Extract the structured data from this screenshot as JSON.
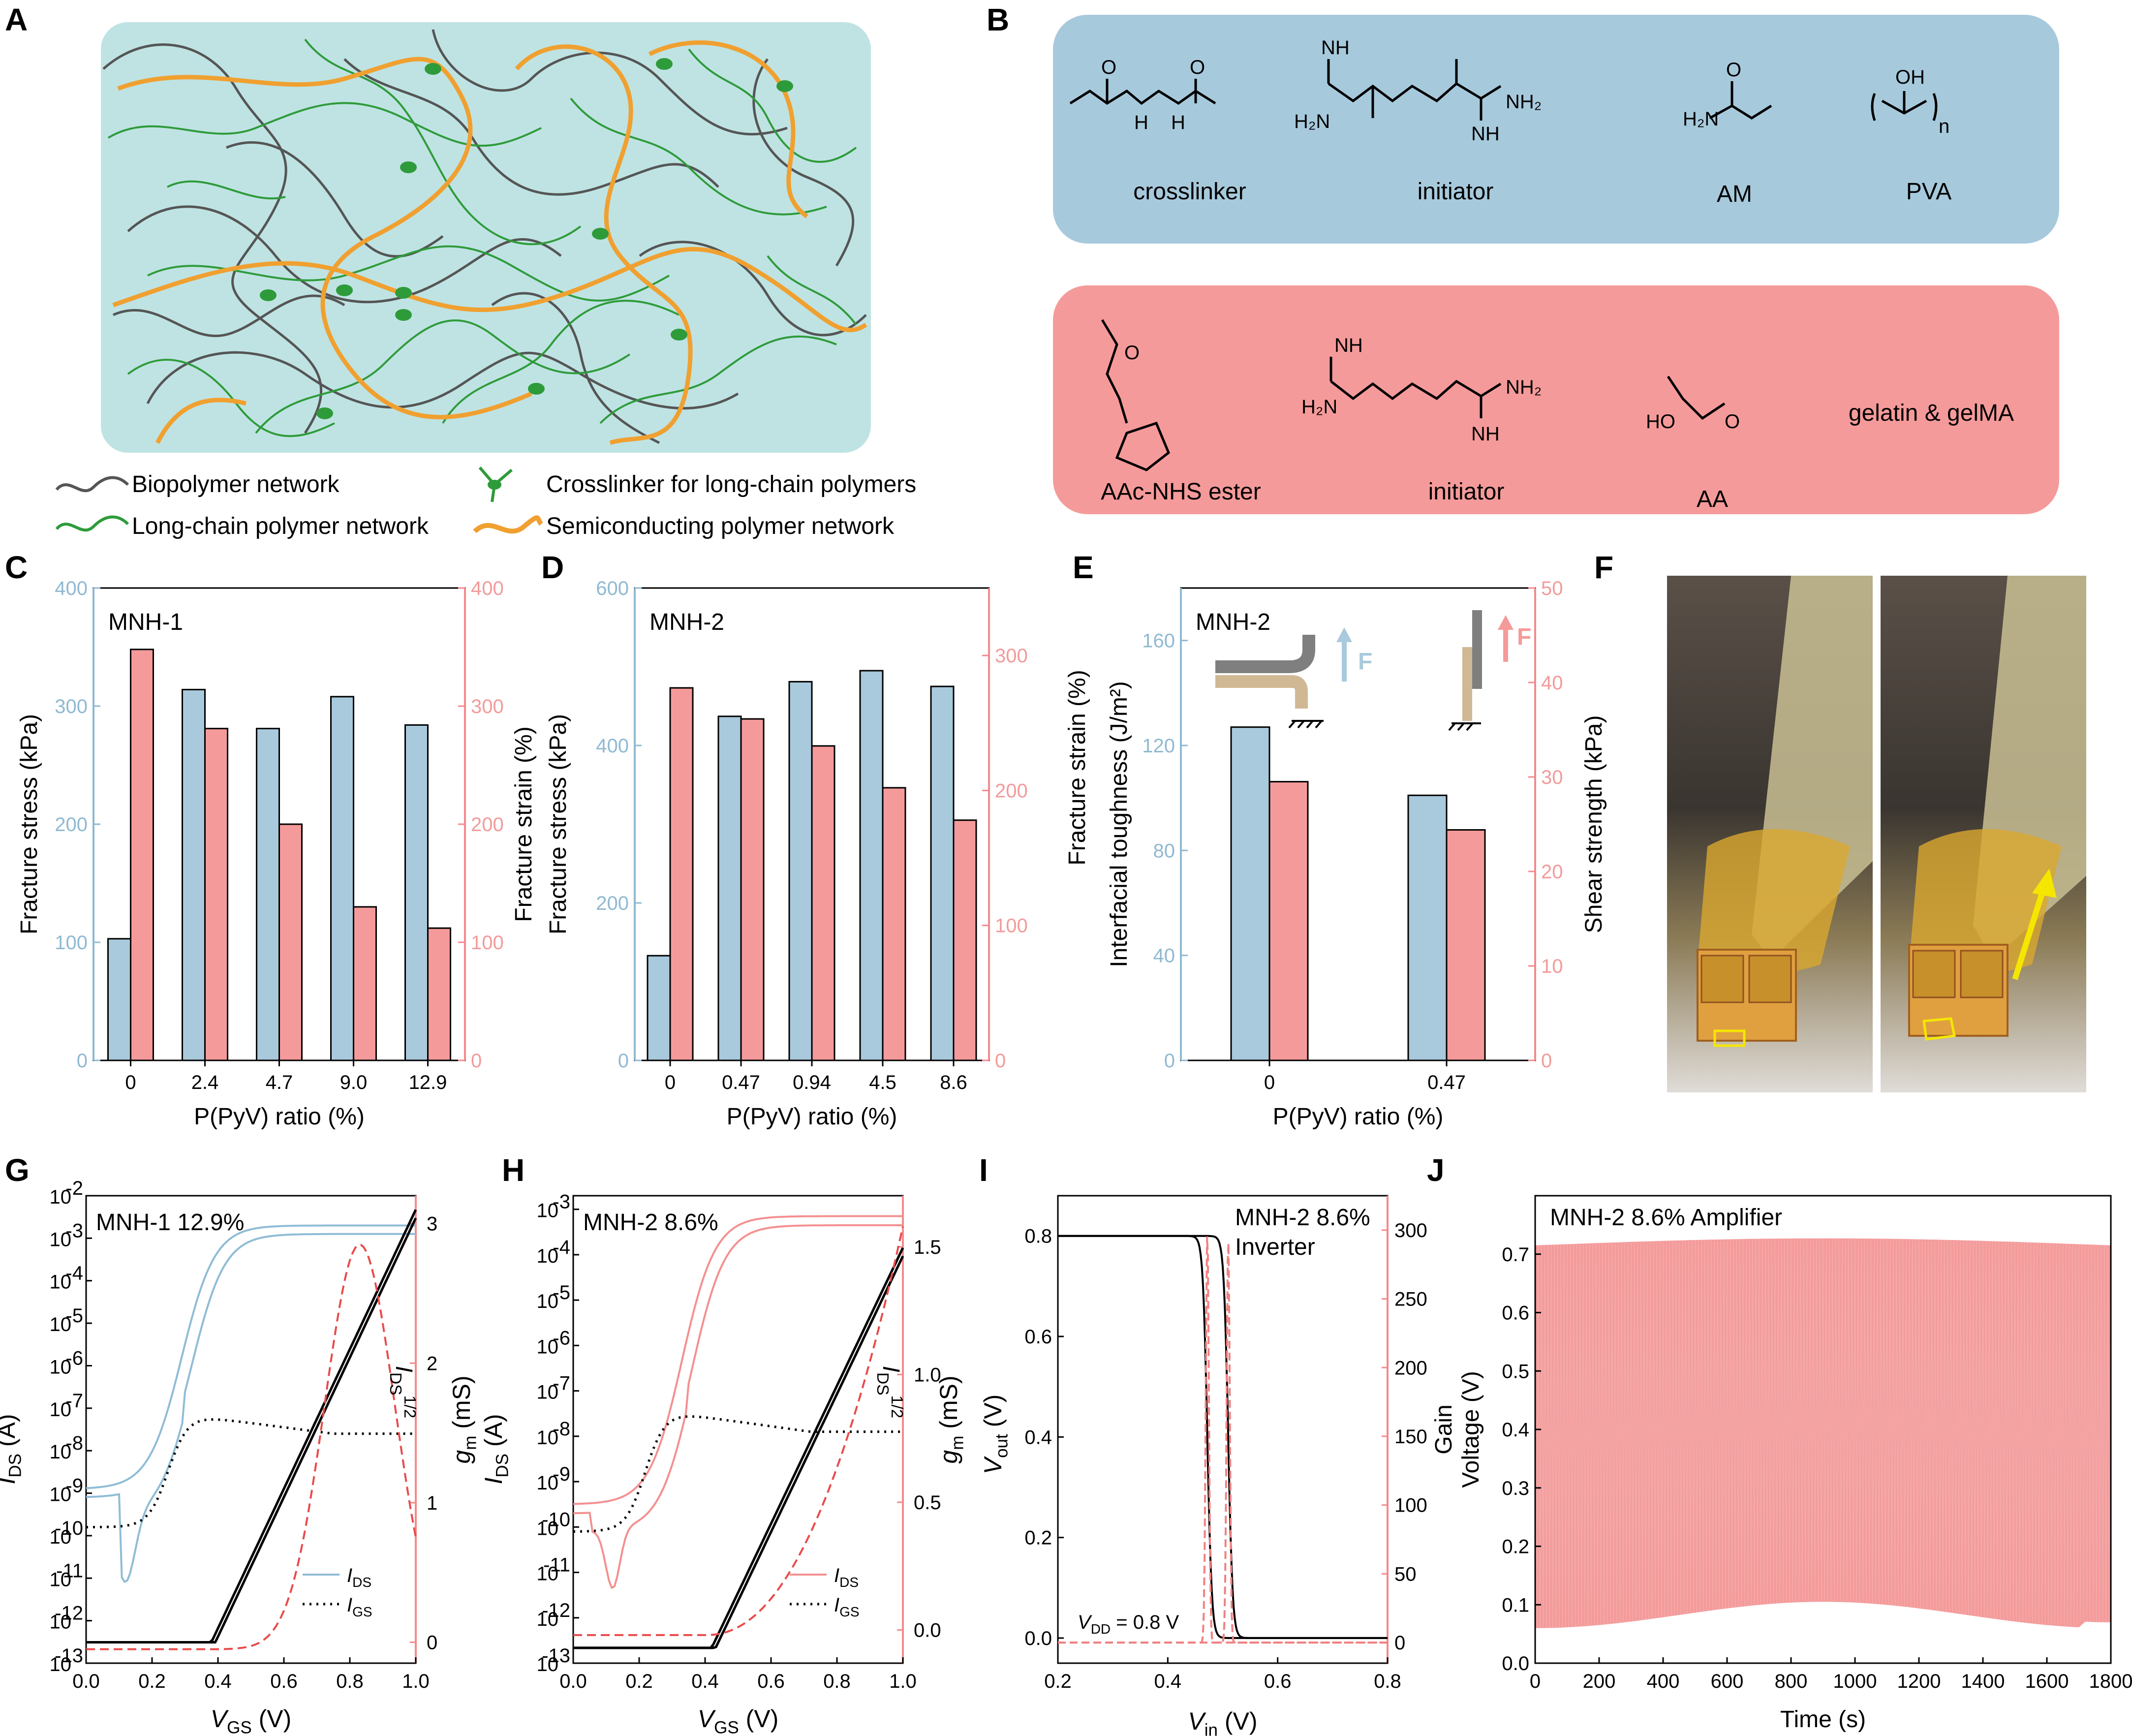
{
  "colors": {
    "blue_bar": "#a9c9dc",
    "red_bar": "#f59a9a",
    "blue_axis": "#8fb9d2",
    "red_axis": "#f4898c",
    "network_bg": "#bfe3e3",
    "gray_net": "#555555",
    "green_net": "#2e9b3a",
    "orange_net": "#f0a030",
    "box_blue": "#a7c9dc",
    "box_red": "#f59a9a"
  },
  "panelA": {
    "label": "A",
    "legend": [
      "Biopolymer network",
      "Crosslinker for long-chain polymers",
      "Long-chain polymer network",
      "Semiconducting polymer network"
    ]
  },
  "panelB": {
    "label": "B",
    "top": {
      "items": [
        "crosslinker",
        "initiator",
        "AM",
        "PVA"
      ]
    },
    "bottom": {
      "items": [
        "AAc-NHS ester",
        "initiator",
        "AA",
        "gelatin & gelMA"
      ]
    },
    "atoms": {
      "O": "O",
      "H": "H",
      "NH": "NH",
      "H2N": "H₂N",
      "NH2": "NH₂",
      "N": "N",
      "OH": "OH",
      "HO": "HO",
      "n": "n"
    }
  },
  "panelC": {
    "label": "C",
    "name": "MNH-1",
    "ylabel_left": "Fracture stress (kPa)",
    "ylabel_right": "Fracture strain (%)",
    "xlabel": "P(PyV) ratio (%)",
    "yticks_left": [
      "0",
      "100",
      "200",
      "300",
      "400"
    ],
    "yticks_right": [
      "0",
      "100",
      "200",
      "300",
      "400"
    ]
  },
  "panelD": {
    "label": "D",
    "name": "MNH-2",
    "ylabel_left": "Fracture stress (kPa)",
    "ylabel_right": "Fracture strain (%)",
    "xlabel": "P(PyV) ratio (%)",
    "yticks_left": [
      "0",
      "200",
      "400",
      "600"
    ],
    "yticks_right": [
      "0",
      "100",
      "200",
      "300"
    ]
  },
  "panelE": {
    "label": "E",
    "name": "MNH-2",
    "ylabel_left": "Interfacial toughness (J/m²)",
    "ylabel_right": "Shear strength (kPa)",
    "ylabel_right2": "Fracture strain (%)",
    "xlabel": "P(PyV) ratio (%)",
    "force": "F",
    "yticks_left": [
      "0",
      "40",
      "80",
      "120",
      "160"
    ],
    "yticks_right": [
      "0",
      "10",
      "20",
      "30",
      "40",
      "50"
    ]
  },
  "panelF": {
    "label": "F"
  },
  "panelG": {
    "label": "G",
    "name": "MNH-1 12.9%",
    "ylabel_left": "I",
    "ylabel_left_sub": "DS",
    "ylabel_left_unit": " (A)",
    "ylabel_right": "g",
    "ylabel_right_sub": "m",
    "ylabel_right_unit": " (mS)",
    "xlabel": "V",
    "xlabel_sub": "GS",
    "xlabel_unit": " (V)",
    "sqrt_label": "I",
    "sqrt_sub": "DS",
    "sqrt_sup": "1/2",
    "legend": [
      {
        "sym": "I",
        "sub": "DS"
      },
      {
        "sym": "I",
        "sub": "GS"
      }
    ],
    "yticks_left": [
      "10",
      "10",
      "10",
      "10",
      "10",
      "10",
      "10",
      "10",
      "10",
      "10",
      "10",
      "10"
    ],
    "yexp_left": [
      "-13",
      "-12",
      "-11",
      "-10",
      "-9",
      "-8",
      "-7",
      "-6",
      "-5",
      "-4",
      "-3",
      "-2"
    ],
    "yticks_right": [
      "0",
      "1",
      "2",
      "3"
    ],
    "xticks": [
      "0.0",
      "0.2",
      "0.4",
      "0.6",
      "0.8",
      "1.0"
    ]
  },
  "panelH": {
    "label": "H",
    "name": "MNH-2 8.6%",
    "ylabel_left": "I",
    "ylabel_left_sub": "DS",
    "ylabel_left_unit": " (A)",
    "ylabel_right": "g",
    "ylabel_right_sub": "m",
    "ylabel_right_unit": " (mS)",
    "xlabel": "V",
    "xlabel_sub": "GS",
    "xlabel_unit": " (V)",
    "sqrt_label": "I",
    "sqrt_sub": "DS",
    "sqrt_sup": "1/2",
    "legend": [
      {
        "sym": "I",
        "sub": "DS"
      },
      {
        "sym": "I",
        "sub": "GS"
      }
    ],
    "yticks_left": [
      "10",
      "10",
      "10",
      "10",
      "10",
      "10",
      "10",
      "10",
      "10",
      "10",
      "10"
    ],
    "yexp_left": [
      "-13",
      "-12",
      "-11",
      "-10",
      "-9",
      "-8",
      "-7",
      "-6",
      "-5",
      "-4",
      "-3"
    ],
    "yticks_right": [
      "0.0",
      "0.5",
      "1.0",
      "1.5"
    ],
    "xticks": [
      "0.0",
      "0.2",
      "0.4",
      "0.6",
      "0.8",
      "1.0"
    ]
  },
  "panelI": {
    "label": "I",
    "name": "MNH-2 8.6%",
    "subname": "Inverter",
    "ylabel_left": "V",
    "ylabel_left_sub": "out",
    "ylabel_left_unit": " (V)",
    "ylabel_right": "Gain",
    "xlabel": "V",
    "xlabel_sub": "in",
    "xlabel_unit": " (V)",
    "vdd": "V",
    "vdd_sub": "DD",
    "vdd_val": " = 0.8 V",
    "yticks_left": [
      "0.0",
      "0.2",
      "0.4",
      "0.6",
      "0.8"
    ],
    "yticks_right": [
      "0",
      "50",
      "100",
      "150",
      "200",
      "250",
      "300"
    ],
    "xticks": [
      "0.2",
      "0.4",
      "0.6",
      "0.8"
    ]
  },
  "panelJ": {
    "label": "J",
    "name": "MNH-2 8.6%",
    "subname": "Amplifier",
    "ylabel": "Voltage (V)",
    "xlabel": "Time (s)",
    "yticks": [
      "0.0",
      "0.1",
      "0.2",
      "0.3",
      "0.4",
      "0.5",
      "0.6",
      "0.7"
    ],
    "xticks": [
      "0",
      "200",
      "400",
      "600",
      "800",
      "1000",
      "1200",
      "1400",
      "1600",
      "1800"
    ]
  },
  "chart_data": [
    {
      "panel": "C",
      "type": "bar",
      "categories": [
        "0",
        "2.4",
        "4.7",
        "9.0",
        "12.9"
      ],
      "series": [
        {
          "name": "Fracture stress (kPa)",
          "values": [
            103,
            314,
            281,
            308,
            284
          ]
        },
        {
          "name": "Fracture strain (%)",
          "values": [
            348,
            281,
            200,
            130,
            112
          ]
        }
      ],
      "ylim_left": [
        0,
        400
      ],
      "ylim_right": [
        0,
        400
      ]
    },
    {
      "panel": "D",
      "type": "bar",
      "categories": [
        "0",
        "0.47",
        "0.94",
        "4.5",
        "8.6"
      ],
      "series": [
        {
          "name": "Fracture stress (kPa)",
          "values": [
            133,
            437,
            481,
            495,
            475
          ]
        },
        {
          "name": "Fracture strain (%)",
          "values": [
            276,
            253,
            233,
            202,
            178
          ]
        }
      ],
      "ylim_left": [
        0,
        600
      ],
      "ylim_right": [
        0,
        350
      ]
    },
    {
      "panel": "E",
      "type": "bar",
      "categories": [
        "0",
        "0.47"
      ],
      "series": [
        {
          "name": "Interfacial toughness (J/m²)",
          "values": [
            127,
            101
          ]
        },
        {
          "name": "Shear strength (kPa)",
          "values": [
            29.5,
            24.4
          ]
        }
      ],
      "ylim_left": [
        0,
        180
      ],
      "ylim_right": [
        0,
        50
      ]
    },
    {
      "panel": "G",
      "type": "line",
      "xlim": [
        0,
        1.0
      ],
      "ylim_log": [
        -13,
        -2
      ],
      "ylim_right": [
        -0.15,
        3.2
      ]
    },
    {
      "panel": "H",
      "type": "line",
      "xlim": [
        0,
        1.0
      ],
      "ylim_log": [
        -13,
        -2.7
      ],
      "ylim_right": [
        -0.13,
        1.7
      ]
    },
    {
      "panel": "I",
      "type": "line",
      "xlim": [
        0.2,
        0.8
      ],
      "ylim_left": [
        -0.05,
        0.88
      ],
      "ylim_right": [
        -15,
        325
      ]
    },
    {
      "panel": "J",
      "type": "area",
      "xlim": [
        0,
        1800
      ],
      "ylim": [
        0,
        0.8
      ]
    }
  ]
}
